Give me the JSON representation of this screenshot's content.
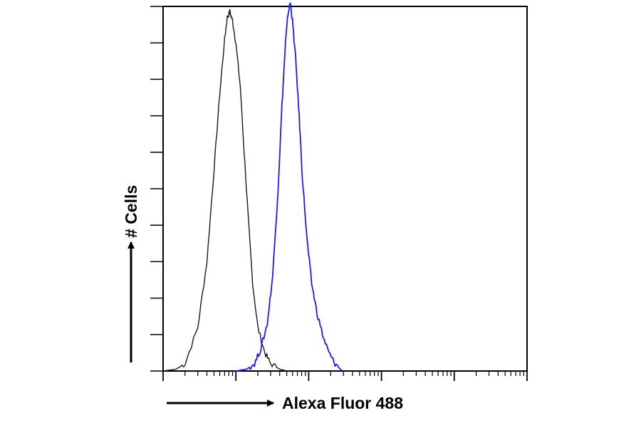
{
  "chart_data": {
    "type": "line",
    "title": "",
    "xlabel": "Alexa Fluor 488",
    "ylabel": "# Cells",
    "x_scale": "log",
    "xlim": [
      1,
      100000
    ],
    "ylim": [
      0,
      100
    ],
    "grid": false,
    "legend": "none",
    "series": [
      {
        "color": "#1a1a1a",
        "points": [
          [
            1,
            0
          ],
          [
            1.5,
            0.5
          ],
          [
            2,
            2
          ],
          [
            3,
            12
          ],
          [
            4,
            30
          ],
          [
            5,
            55
          ],
          [
            6,
            76
          ],
          [
            7,
            91
          ],
          [
            7.6,
            97
          ],
          [
            8.3,
            98.5
          ],
          [
            9,
            96
          ],
          [
            10,
            90
          ],
          [
            11.5,
            78
          ],
          [
            13,
            60
          ],
          [
            15,
            40
          ],
          [
            17,
            24
          ],
          [
            20,
            12
          ],
          [
            25,
            5
          ],
          [
            30,
            2
          ],
          [
            40,
            0.5
          ],
          [
            50,
            0
          ]
        ]
      },
      {
        "color": "#1a1aff",
        "points": [
          [
            10,
            0
          ],
          [
            14,
            0.5
          ],
          [
            18,
            2
          ],
          [
            22,
            6
          ],
          [
            27,
            13
          ],
          [
            32,
            26
          ],
          [
            38,
            50
          ],
          [
            43,
            73
          ],
          [
            48,
            90
          ],
          [
            52,
            98
          ],
          [
            56,
            101
          ],
          [
            60,
            96
          ],
          [
            66,
            86
          ],
          [
            74,
            70
          ],
          [
            82,
            53
          ],
          [
            95,
            36
          ],
          [
            110,
            24
          ],
          [
            130,
            16
          ],
          [
            160,
            9
          ],
          [
            190,
            5
          ],
          [
            230,
            2
          ],
          [
            290,
            0
          ]
        ]
      }
    ]
  }
}
